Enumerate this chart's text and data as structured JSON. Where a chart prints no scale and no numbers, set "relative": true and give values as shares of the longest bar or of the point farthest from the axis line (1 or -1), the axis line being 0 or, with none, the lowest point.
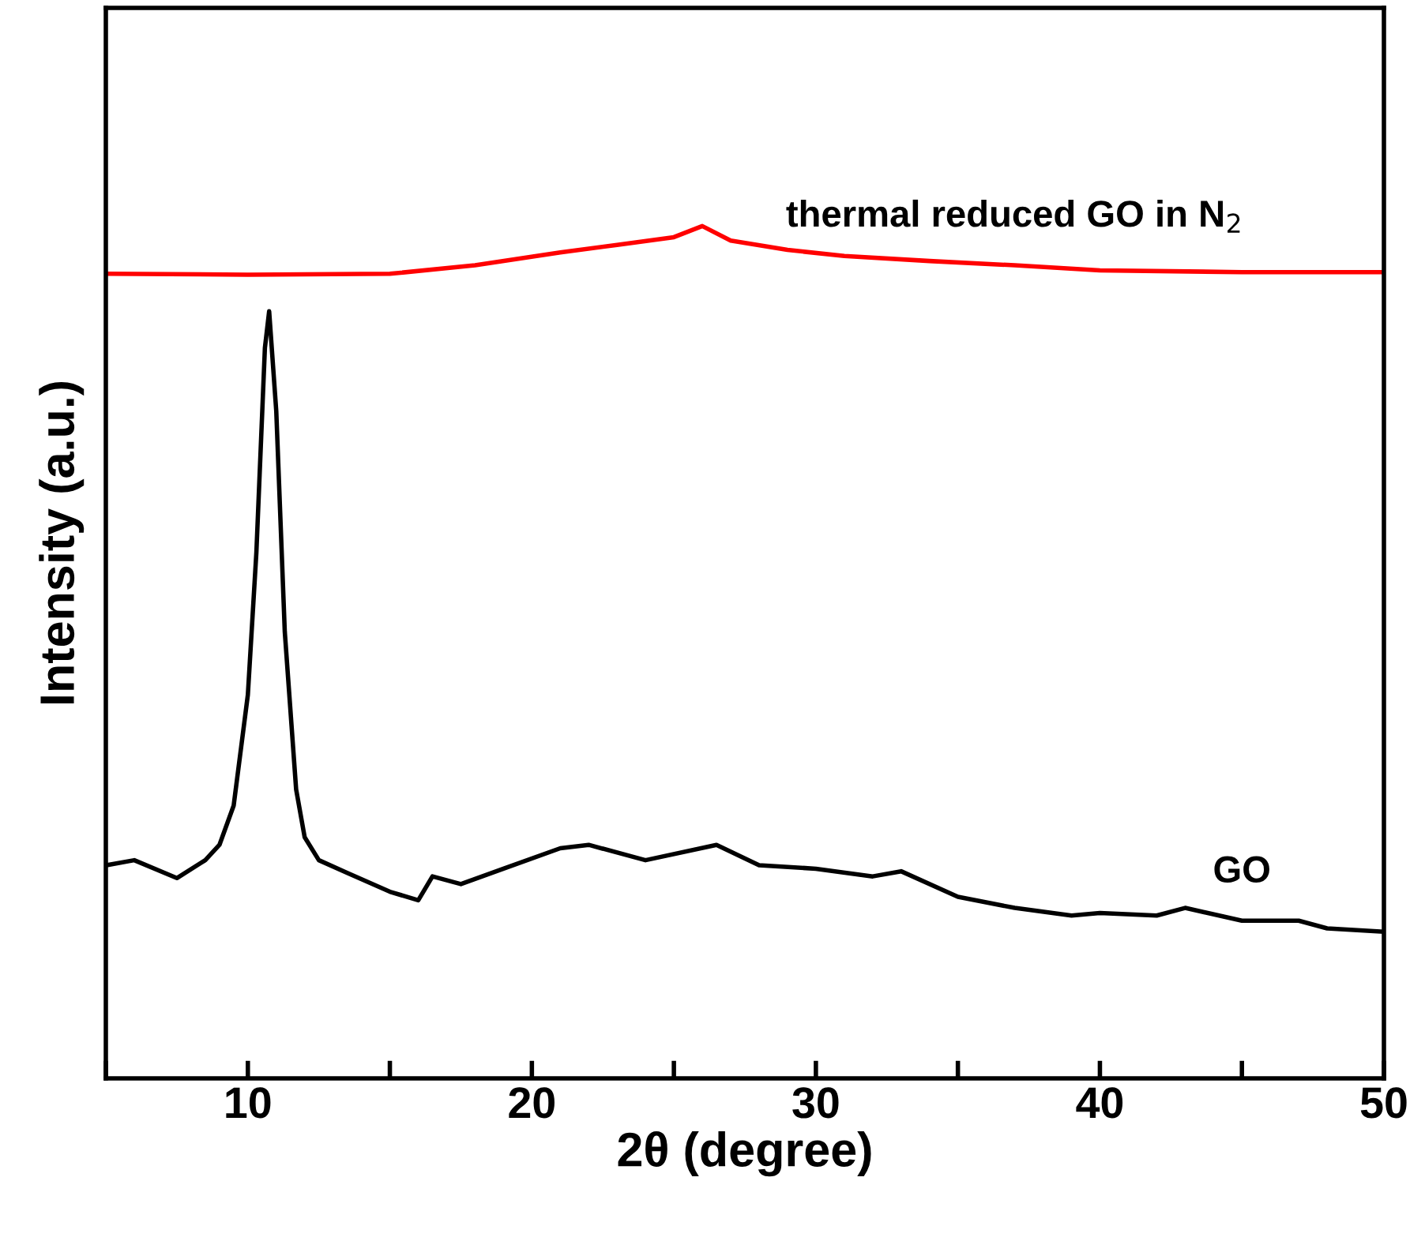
{
  "chart_data": {
    "type": "line",
    "relative": true,
    "xlabel": "2θ (degree)",
    "ylabel": "Intensity (a.u.)",
    "xlim": [
      5,
      50
    ],
    "xticks": [
      {
        "value": 5,
        "label": null
      },
      10,
      {
        "value": 15,
        "label": null
      },
      20,
      {
        "value": 25,
        "label": null
      },
      30,
      {
        "value": 35,
        "label": null
      },
      40,
      {
        "value": 45,
        "label": null
      },
      50
    ],
    "grid": false,
    "marker": "none",
    "line_style": "solid",
    "series": [
      {
        "name": "GO",
        "color": "#000000",
        "x": [
          5,
          6,
          7.5,
          8.5,
          9,
          9.5,
          10,
          10.3,
          10.6,
          10.75,
          11,
          11.3,
          11.7,
          12,
          12.5,
          13.5,
          15,
          16,
          16.5,
          17.5,
          19,
          21,
          22,
          24,
          26.5,
          28,
          30,
          32,
          33,
          35,
          37,
          39,
          40,
          42,
          43,
          45,
          47,
          48,
          50
        ],
        "values": [
          0.25,
          0.256,
          0.235,
          0.256,
          0.274,
          0.32,
          0.45,
          0.617,
          0.857,
          0.9,
          0.783,
          0.524,
          0.339,
          0.283,
          0.256,
          0.241,
          0.219,
          0.209,
          0.237,
          0.228,
          0.246,
          0.27,
          0.274,
          0.256,
          0.274,
          0.25,
          0.246,
          0.237,
          0.243,
          0.213,
          0.2,
          0.191,
          0.194,
          0.191,
          0.2,
          0.185,
          0.185,
          0.176,
          0.172
        ]
      },
      {
        "name": "thermal reduced GO in N$_{2}$",
        "color": "#ff0000",
        "x": [
          5,
          10,
          15,
          18,
          21,
          23,
          25,
          26,
          27,
          29,
          31,
          34,
          37,
          40,
          45,
          50
        ],
        "values": [
          0.944,
          0.943,
          0.944,
          0.954,
          0.969,
          0.978,
          0.987,
          1,
          0.983,
          0.972,
          0.965,
          0.959,
          0.954,
          0.948,
          0.946,
          0.946
        ]
      }
    ]
  }
}
